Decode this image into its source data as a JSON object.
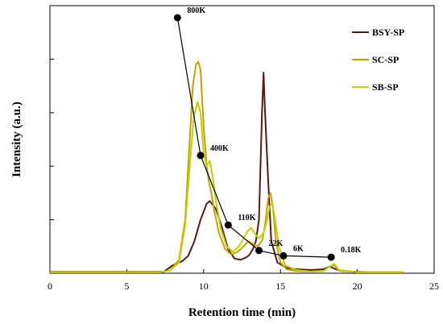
{
  "chart_data": {
    "type": "line",
    "xlabel": "Retention time (min)",
    "ylabel": "Intensity (a.u.)",
    "xlim": [
      0,
      25
    ],
    "xticks": [
      0,
      5,
      10,
      15,
      20,
      25
    ],
    "xtick_labels": [
      "0",
      "5",
      "10",
      "15",
      "20",
      "25"
    ],
    "ylim": [
      0,
      1.0
    ],
    "yticks": [
      0,
      0.2,
      0.4,
      0.6,
      0.8,
      1.0
    ],
    "grid": false,
    "legend_position": "top-right",
    "series": [
      {
        "name": "BSY-SP",
        "color": "#5a1a12",
        "x": [
          0,
          7.4,
          8,
          8.6,
          9,
          9.4,
          9.8,
          10.2,
          10.4,
          10.8,
          11.2,
          11.6,
          12,
          12.4,
          12.8,
          13,
          13.2,
          13.4,
          13.6,
          13.8,
          13.9,
          14,
          14.2,
          14.4,
          14.8,
          15.4,
          16,
          17,
          17.8,
          18.2,
          18.6,
          19,
          20,
          21,
          22,
          23
        ],
        "y": [
          0.005,
          0.005,
          0.03,
          0.045,
          0.065,
          0.12,
          0.2,
          0.26,
          0.27,
          0.24,
          0.17,
          0.09,
          0.055,
          0.05,
          0.06,
          0.07,
          0.09,
          0.12,
          0.2,
          0.6,
          0.75,
          0.6,
          0.35,
          0.12,
          0.04,
          0.02,
          0.015,
          0.012,
          0.015,
          0.025,
          0.015,
          0.008,
          0.005,
          0.004,
          0.004,
          0.004
        ]
      },
      {
        "name": "SC-SP",
        "color": "#c8a000",
        "x": [
          0,
          7.2,
          7.8,
          8.4,
          8.8,
          9.1,
          9.3,
          9.5,
          9.65,
          9.8,
          10,
          10.2,
          10.35,
          10.5,
          10.7,
          11,
          11.4,
          11.8,
          12.2,
          12.6,
          12.9,
          13.2,
          13.5,
          13.8,
          14,
          14.2,
          14.35,
          14.5,
          14.7,
          15,
          15.4,
          16,
          17,
          17.8,
          18.2,
          18.5,
          18.8,
          20,
          23
        ],
        "y": [
          0.004,
          0.004,
          0.01,
          0.05,
          0.2,
          0.5,
          0.7,
          0.78,
          0.79,
          0.76,
          0.55,
          0.4,
          0.34,
          0.3,
          0.23,
          0.15,
          0.09,
          0.07,
          0.08,
          0.1,
          0.12,
          0.11,
          0.1,
          0.12,
          0.18,
          0.28,
          0.3,
          0.25,
          0.12,
          0.04,
          0.015,
          0.008,
          0.006,
          0.008,
          0.025,
          0.03,
          0.01,
          0.004,
          0.004
        ]
      },
      {
        "name": "SB-SP",
        "color": "#c0d000",
        "x": [
          0,
          7.2,
          7.8,
          8.4,
          8.8,
          9.1,
          9.35,
          9.6,
          9.8,
          10,
          10.2,
          10.4,
          10.6,
          10.8,
          11.1,
          11.5,
          11.9,
          12.3,
          12.6,
          12.9,
          13.1,
          13.3,
          13.6,
          13.9,
          14.1,
          14.3,
          14.45,
          14.6,
          14.9,
          15.3,
          16,
          17,
          17.8,
          18.2,
          18.5,
          18.8,
          20,
          23
        ],
        "y": [
          0.004,
          0.004,
          0.01,
          0.04,
          0.18,
          0.4,
          0.58,
          0.64,
          0.6,
          0.45,
          0.4,
          0.42,
          0.36,
          0.27,
          0.17,
          0.1,
          0.08,
          0.1,
          0.13,
          0.16,
          0.17,
          0.15,
          0.13,
          0.15,
          0.19,
          0.25,
          0.26,
          0.22,
          0.1,
          0.03,
          0.012,
          0.006,
          0.008,
          0.025,
          0.035,
          0.012,
          0.004,
          0.004
        ]
      }
    ],
    "standards": [
      {
        "label": "800K",
        "x": 8.3,
        "y": 0.955
      },
      {
        "label": "400K",
        "x": 9.8,
        "y": 0.44
      },
      {
        "label": "110K",
        "x": 11.6,
        "y": 0.18
      },
      {
        "label": "22K",
        "x": 13.6,
        "y": 0.085
      },
      {
        "label": "6K",
        "x": 15.2,
        "y": 0.065
      },
      {
        "label": "0.18K",
        "x": 18.3,
        "y": 0.06
      }
    ]
  }
}
